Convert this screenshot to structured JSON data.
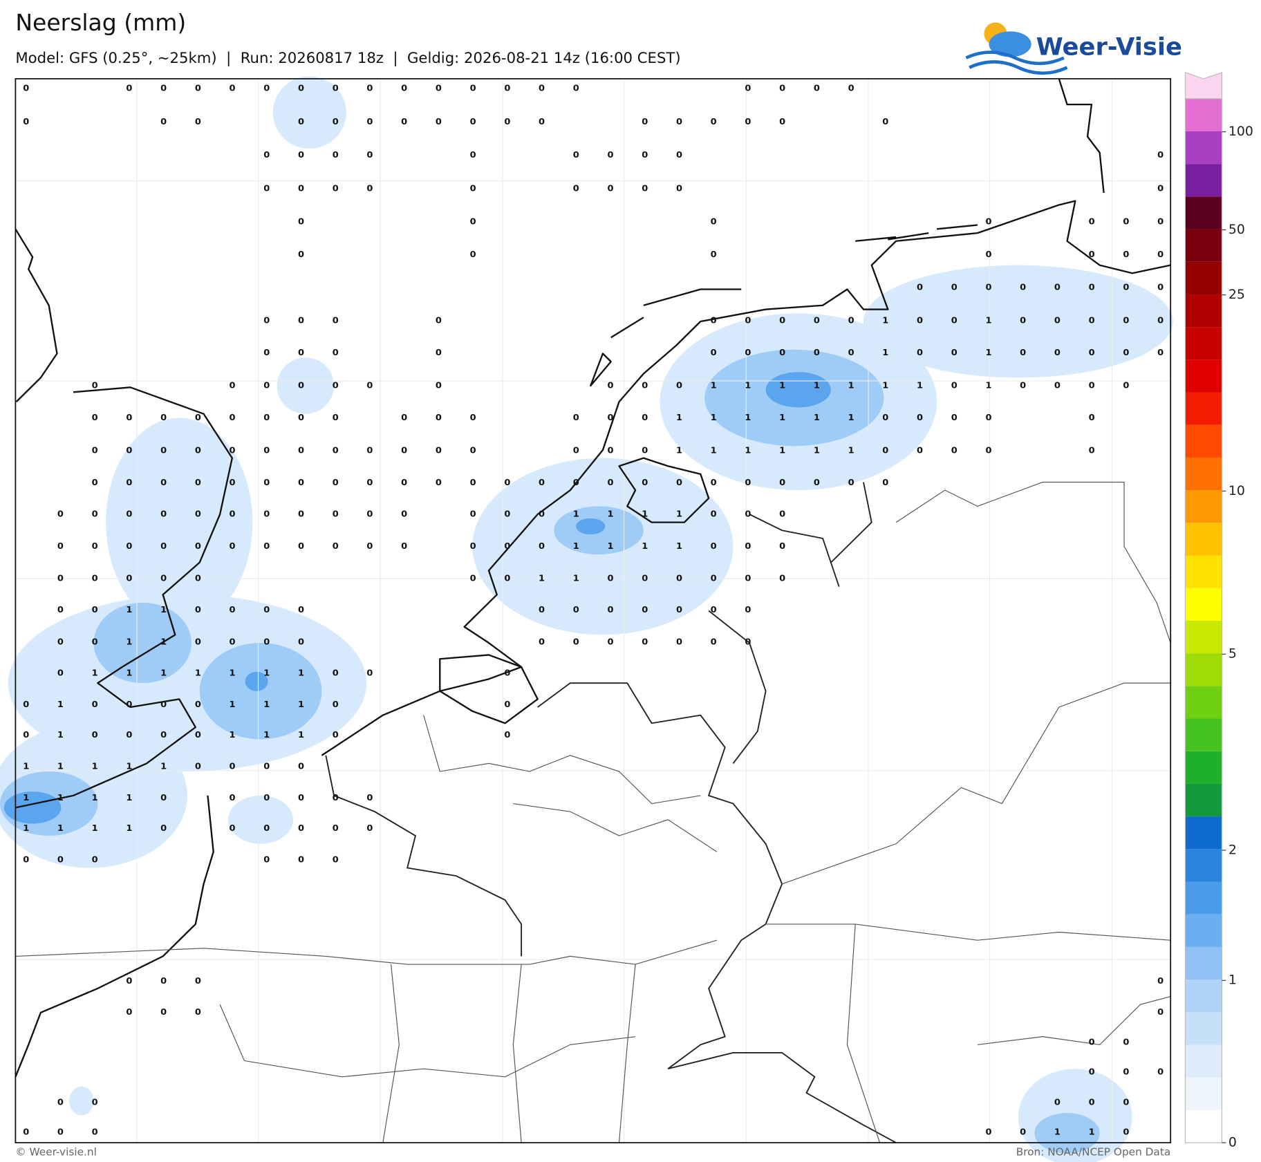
{
  "header": {
    "title": "Neerslag (mm)",
    "subtitle": "Model: GFS (0.25°, ~25km)  |  Run: 20260817 18z  |  Geldig: 2026-08-21 14z (16:00 CEST)"
  },
  "logo": {
    "text": "Weer-Visie"
  },
  "colorbar": {
    "ticks": [
      0,
      1,
      2,
      5,
      10,
      25,
      50,
      100
    ]
  },
  "map": {
    "grid": [
      [
        0,
        null,
        null,
        0,
        0,
        0,
        0,
        0,
        0,
        0,
        0,
        0,
        0,
        0,
        0,
        0,
        0,
        null,
        null,
        null,
        null,
        0,
        0,
        0,
        0,
        null,
        null,
        null,
        null,
        null,
        null,
        null,
        null,
        null
      ],
      [
        0,
        null,
        null,
        null,
        0,
        0,
        null,
        null,
        0,
        0,
        0,
        0,
        0,
        0,
        0,
        0,
        null,
        null,
        0,
        0,
        0,
        0,
        0,
        null,
        null,
        0,
        null,
        null,
        null,
        null,
        null,
        null,
        null,
        null
      ],
      [
        null,
        null,
        null,
        null,
        null,
        null,
        null,
        0,
        0,
        0,
        0,
        null,
        null,
        0,
        null,
        null,
        0,
        0,
        0,
        0,
        null,
        null,
        null,
        null,
        null,
        null,
        null,
        null,
        null,
        null,
        null,
        null,
        null,
        0
      ],
      [
        null,
        null,
        null,
        null,
        null,
        null,
        null,
        0,
        0,
        0,
        0,
        null,
        null,
        0,
        null,
        null,
        0,
        0,
        0,
        0,
        null,
        null,
        null,
        null,
        null,
        null,
        null,
        null,
        null,
        null,
        null,
        null,
        null,
        0
      ],
      [
        null,
        null,
        null,
        null,
        null,
        null,
        null,
        null,
        0,
        null,
        null,
        null,
        null,
        0,
        null,
        null,
        null,
        null,
        null,
        null,
        0,
        null,
        null,
        null,
        null,
        null,
        null,
        null,
        0,
        null,
        null,
        0,
        0,
        0
      ],
      [
        null,
        null,
        null,
        null,
        null,
        null,
        null,
        null,
        0,
        null,
        null,
        null,
        null,
        0,
        null,
        null,
        null,
        null,
        null,
        null,
        0,
        null,
        null,
        null,
        null,
        null,
        null,
        null,
        0,
        null,
        null,
        0,
        0,
        0
      ],
      [
        null,
        null,
        null,
        null,
        null,
        null,
        null,
        null,
        null,
        null,
        null,
        null,
        null,
        null,
        null,
        null,
        null,
        null,
        null,
        null,
        null,
        null,
        null,
        null,
        null,
        null,
        0,
        0,
        0,
        0,
        0,
        0,
        0,
        0
      ],
      [
        null,
        null,
        null,
        null,
        null,
        null,
        null,
        0,
        0,
        0,
        null,
        null,
        0,
        null,
        null,
        null,
        null,
        null,
        null,
        null,
        0,
        0,
        0,
        0,
        0,
        1,
        0,
        0,
        1,
        0,
        0,
        0,
        0,
        0
      ],
      [
        null,
        null,
        null,
        null,
        null,
        null,
        null,
        0,
        0,
        0,
        null,
        null,
        0,
        null,
        null,
        null,
        null,
        null,
        null,
        null,
        0,
        0,
        0,
        0,
        0,
        1,
        0,
        0,
        1,
        0,
        0,
        0,
        0,
        0
      ],
      [
        null,
        null,
        0,
        null,
        null,
        null,
        0,
        0,
        0,
        0,
        0,
        null,
        0,
        null,
        null,
        null,
        null,
        0,
        0,
        0,
        1,
        1,
        1,
        1,
        1,
        1,
        1,
        0,
        1,
        0,
        0,
        0,
        0,
        null
      ],
      [
        null,
        null,
        0,
        0,
        0,
        0,
        0,
        0,
        0,
        0,
        null,
        0,
        0,
        0,
        null,
        null,
        0,
        0,
        0,
        1,
        1,
        1,
        1,
        1,
        1,
        0,
        0,
        0,
        0,
        null,
        null,
        0,
        null,
        null
      ],
      [
        null,
        null,
        0,
        0,
        0,
        0,
        0,
        0,
        0,
        0,
        0,
        0,
        0,
        0,
        null,
        null,
        0,
        0,
        0,
        1,
        1,
        1,
        1,
        1,
        1,
        0,
        0,
        0,
        0,
        null,
        null,
        0,
        null,
        null
      ],
      [
        null,
        null,
        0,
        0,
        0,
        0,
        0,
        0,
        0,
        0,
        0,
        0,
        0,
        0,
        0,
        0,
        0,
        0,
        0,
        0,
        0,
        0,
        0,
        0,
        0,
        0,
        null,
        null,
        null,
        null,
        null,
        null,
        null,
        null
      ],
      [
        null,
        0,
        0,
        0,
        0,
        0,
        0,
        0,
        0,
        0,
        0,
        0,
        null,
        0,
        0,
        0,
        1,
        1,
        1,
        1,
        0,
        0,
        0,
        null,
        null,
        null,
        null,
        null,
        null,
        null,
        null,
        null,
        null,
        null
      ],
      [
        null,
        0,
        0,
        0,
        0,
        0,
        0,
        0,
        0,
        0,
        0,
        0,
        null,
        0,
        0,
        0,
        1,
        1,
        1,
        1,
        0,
        0,
        0,
        null,
        null,
        null,
        null,
        null,
        null,
        null,
        null,
        null,
        null,
        null
      ],
      [
        null,
        0,
        0,
        0,
        0,
        0,
        null,
        null,
        null,
        null,
        null,
        null,
        null,
        0,
        0,
        1,
        1,
        0,
        0,
        0,
        0,
        0,
        0,
        null,
        null,
        null,
        null,
        null,
        null,
        null,
        null,
        null,
        null,
        null
      ],
      [
        null,
        0,
        0,
        1,
        1,
        0,
        0,
        0,
        0,
        null,
        null,
        null,
        null,
        null,
        null,
        0,
        0,
        0,
        0,
        0,
        0,
        0,
        null,
        null,
        null,
        null,
        null,
        null,
        null,
        null,
        null,
        null,
        null,
        null
      ],
      [
        null,
        0,
        0,
        1,
        1,
        0,
        0,
        0,
        0,
        null,
        null,
        null,
        null,
        null,
        null,
        0,
        0,
        0,
        0,
        0,
        0,
        0,
        null,
        null,
        null,
        null,
        null,
        null,
        null,
        null,
        null,
        null,
        null,
        null
      ],
      [
        null,
        0,
        1,
        1,
        1,
        1,
        1,
        1,
        1,
        0,
        0,
        null,
        null,
        null,
        0,
        null,
        null,
        null,
        null,
        null,
        null,
        null,
        null,
        null,
        null,
        null,
        null,
        null,
        null,
        null,
        null,
        null,
        null,
        null
      ],
      [
        0,
        1,
        0,
        0,
        0,
        0,
        1,
        1,
        1,
        0,
        null,
        null,
        null,
        null,
        0,
        null,
        null,
        null,
        null,
        null,
        null,
        null,
        null,
        null,
        null,
        null,
        null,
        null,
        null,
        null,
        null,
        null,
        null,
        null
      ],
      [
        0,
        1,
        0,
        0,
        0,
        0,
        1,
        1,
        1,
        0,
        null,
        null,
        null,
        null,
        0,
        null,
        null,
        null,
        null,
        null,
        null,
        null,
        null,
        null,
        null,
        null,
        null,
        null,
        null,
        null,
        null,
        null,
        null,
        null
      ],
      [
        1,
        1,
        1,
        1,
        1,
        0,
        0,
        0,
        0,
        null,
        null,
        null,
        null,
        null,
        null,
        null,
        null,
        null,
        null,
        null,
        null,
        null,
        null,
        null,
        null,
        null,
        null,
        null,
        null,
        null,
        null,
        null,
        null,
        null
      ],
      [
        1,
        1,
        1,
        1,
        0,
        null,
        0,
        0,
        0,
        0,
        0,
        null,
        null,
        null,
        null,
        null,
        null,
        null,
        null,
        null,
        null,
        null,
        null,
        null,
        null,
        null,
        null,
        null,
        null,
        null,
        null,
        null,
        null,
        null
      ],
      [
        1,
        1,
        1,
        1,
        0,
        null,
        0,
        0,
        0,
        0,
        0,
        null,
        null,
        null,
        null,
        null,
        null,
        null,
        null,
        null,
        null,
        null,
        null,
        null,
        null,
        null,
        null,
        null,
        null,
        null,
        null,
        null,
        null,
        null
      ],
      [
        0,
        0,
        0,
        null,
        null,
        null,
        null,
        0,
        0,
        0,
        null,
        null,
        null,
        null,
        null,
        null,
        null,
        null,
        null,
        null,
        null,
        null,
        null,
        null,
        null,
        null,
        null,
        null,
        null,
        null,
        null,
        null,
        null,
        null
      ],
      [
        null,
        null,
        null,
        null,
        null,
        null,
        null,
        null,
        null,
        null,
        null,
        null,
        null,
        null,
        null,
        null,
        null,
        null,
        null,
        null,
        null,
        null,
        null,
        null,
        null,
        null,
        null,
        null,
        null,
        null,
        null,
        null,
        null,
        null
      ],
      [
        null,
        null,
        null,
        null,
        null,
        null,
        null,
        null,
        null,
        null,
        null,
        null,
        null,
        null,
        null,
        null,
        null,
        null,
        null,
        null,
        null,
        null,
        null,
        null,
        null,
        null,
        null,
        null,
        null,
        null,
        null,
        null,
        null,
        null
      ],
      [
        null,
        null,
        null,
        null,
        null,
        null,
        null,
        null,
        null,
        null,
        null,
        null,
        null,
        null,
        null,
        null,
        null,
        null,
        null,
        null,
        null,
        null,
        null,
        null,
        null,
        null,
        null,
        null,
        null,
        null,
        null,
        null,
        null,
        null
      ],
      [
        null,
        null,
        null,
        0,
        0,
        0,
        null,
        null,
        null,
        null,
        null,
        null,
        null,
        null,
        null,
        null,
        null,
        null,
        null,
        null,
        null,
        null,
        null,
        null,
        null,
        null,
        null,
        null,
        null,
        null,
        null,
        null,
        null,
        0
      ],
      [
        null,
        null,
        null,
        0,
        0,
        0,
        null,
        null,
        null,
        null,
        null,
        null,
        null,
        null,
        null,
        null,
        null,
        null,
        null,
        null,
        null,
        null,
        null,
        null,
        null,
        null,
        null,
        null,
        null,
        null,
        null,
        null,
        null,
        0
      ],
      [
        null,
        null,
        null,
        null,
        null,
        null,
        null,
        null,
        null,
        null,
        null,
        null,
        null,
        null,
        null,
        null,
        null,
        null,
        null,
        null,
        null,
        null,
        null,
        null,
        null,
        null,
        null,
        null,
        null,
        null,
        null,
        0,
        0,
        null
      ],
      [
        null,
        null,
        null,
        null,
        null,
        null,
        null,
        null,
        null,
        null,
        null,
        null,
        null,
        null,
        null,
        null,
        null,
        null,
        null,
        null,
        null,
        null,
        null,
        null,
        null,
        null,
        null,
        null,
        null,
        null,
        null,
        0,
        0,
        0
      ],
      [
        null,
        0,
        0,
        null,
        null,
        null,
        null,
        null,
        null,
        null,
        null,
        null,
        null,
        null,
        null,
        null,
        null,
        null,
        null,
        null,
        null,
        null,
        null,
        null,
        null,
        null,
        null,
        null,
        null,
        null,
        0,
        0,
        0,
        null
      ],
      [
        0,
        0,
        0,
        null,
        null,
        null,
        null,
        null,
        null,
        null,
        null,
        null,
        null,
        null,
        null,
        null,
        null,
        null,
        null,
        null,
        null,
        null,
        null,
        null,
        null,
        null,
        null,
        null,
        0,
        0,
        1,
        1,
        0,
        null
      ]
    ]
  },
  "footer": {
    "left": "© Weer-visie.nl",
    "right": "Bron: NOAA/NCEP Open Data"
  }
}
